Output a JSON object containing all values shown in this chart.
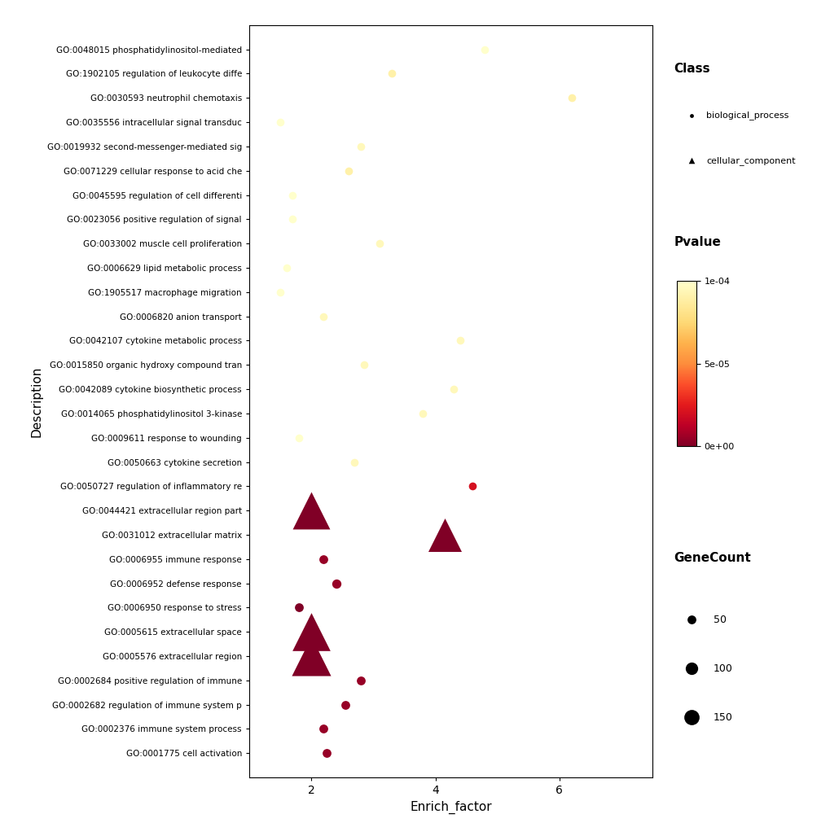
{
  "terms": [
    {
      "label": "GO:0048015 phosphatidylinositol-mediated",
      "enrich_factor": 4.8,
      "pvalue": 0.0001,
      "gene_count": 40,
      "class": "biological_process"
    },
    {
      "label": "GO:1902105 regulation of leukocyte diffe",
      "enrich_factor": 3.3,
      "pvalue": 9e-05,
      "gene_count": 40,
      "class": "biological_process"
    },
    {
      "label": "GO:0030593 neutrophil chemotaxis",
      "enrich_factor": 6.2,
      "pvalue": 9e-05,
      "gene_count": 40,
      "class": "biological_process"
    },
    {
      "label": "GO:0035556 intracellular signal transduc",
      "enrich_factor": 1.5,
      "pvalue": 0.0001,
      "gene_count": 40,
      "class": "biological_process"
    },
    {
      "label": "GO:0019932 second-messenger-mediated sig",
      "enrich_factor": 2.8,
      "pvalue": 9.5e-05,
      "gene_count": 40,
      "class": "biological_process"
    },
    {
      "label": "GO:0071229 cellular response to acid che",
      "enrich_factor": 2.6,
      "pvalue": 9e-05,
      "gene_count": 40,
      "class": "biological_process"
    },
    {
      "label": "GO:0045595 regulation of cell differenti",
      "enrich_factor": 1.7,
      "pvalue": 0.0001,
      "gene_count": 40,
      "class": "biological_process"
    },
    {
      "label": "GO:0023056 positive regulation of signal",
      "enrich_factor": 1.7,
      "pvalue": 0.0001,
      "gene_count": 40,
      "class": "biological_process"
    },
    {
      "label": "GO:0033002 muscle cell proliferation",
      "enrich_factor": 3.1,
      "pvalue": 9.5e-05,
      "gene_count": 40,
      "class": "biological_process"
    },
    {
      "label": "GO:0006629 lipid metabolic process",
      "enrich_factor": 1.6,
      "pvalue": 0.0001,
      "gene_count": 40,
      "class": "biological_process"
    },
    {
      "label": "GO:1905517 macrophage migration",
      "enrich_factor": 1.5,
      "pvalue": 0.0001,
      "gene_count": 40,
      "class": "biological_process"
    },
    {
      "label": "GO:0006820 anion transport",
      "enrich_factor": 2.2,
      "pvalue": 9.5e-05,
      "gene_count": 40,
      "class": "biological_process"
    },
    {
      "label": "GO:0042107 cytokine metabolic process",
      "enrich_factor": 4.4,
      "pvalue": 9.5e-05,
      "gene_count": 40,
      "class": "biological_process"
    },
    {
      "label": "GO:0015850 organic hydroxy compound tran",
      "enrich_factor": 2.85,
      "pvalue": 9.5e-05,
      "gene_count": 40,
      "class": "biological_process"
    },
    {
      "label": "GO:0042089 cytokine biosynthetic process",
      "enrich_factor": 4.3,
      "pvalue": 9.5e-05,
      "gene_count": 40,
      "class": "biological_process"
    },
    {
      "label": "GO:0014065 phosphatidylinositol 3-kinase",
      "enrich_factor": 3.8,
      "pvalue": 9.5e-05,
      "gene_count": 40,
      "class": "biological_process"
    },
    {
      "label": "GO:0009611 response to wounding",
      "enrich_factor": 1.8,
      "pvalue": 0.0001,
      "gene_count": 40,
      "class": "biological_process"
    },
    {
      "label": "GO:0050663 cytokine secretion",
      "enrich_factor": 2.7,
      "pvalue": 9.5e-05,
      "gene_count": 40,
      "class": "biological_process"
    },
    {
      "label": "GO:0050727 regulation of inflammatory re",
      "enrich_factor": 4.6,
      "pvalue": 2e-05,
      "gene_count": 40,
      "class": "biological_process"
    },
    {
      "label": "GO:0044421 extracellular region part",
      "enrich_factor": 2.0,
      "pvalue": 0.0,
      "gene_count": 150,
      "class": "cellular_component"
    },
    {
      "label": "GO:0031012 extracellular matrix",
      "enrich_factor": 4.15,
      "pvalue": 0.0,
      "gene_count": 120,
      "class": "cellular_component"
    },
    {
      "label": "GO:0006955 immune response",
      "enrich_factor": 2.2,
      "pvalue": 5e-06,
      "gene_count": 50,
      "class": "biological_process"
    },
    {
      "label": "GO:0006952 defense response",
      "enrich_factor": 2.4,
      "pvalue": 5e-06,
      "gene_count": 55,
      "class": "biological_process"
    },
    {
      "label": "GO:0006950 response to stress",
      "enrich_factor": 1.8,
      "pvalue": 0.0,
      "gene_count": 50,
      "class": "biological_process"
    },
    {
      "label": "GO:0005615 extracellular space",
      "enrich_factor": 2.0,
      "pvalue": 0.0,
      "gene_count": 155,
      "class": "cellular_component"
    },
    {
      "label": "GO:0005576 extracellular region",
      "enrich_factor": 2.0,
      "pvalue": 0.0,
      "gene_count": 165,
      "class": "cellular_component"
    },
    {
      "label": "GO:0002684 positive regulation of immune",
      "enrich_factor": 2.8,
      "pvalue": 5e-06,
      "gene_count": 50,
      "class": "biological_process"
    },
    {
      "label": "GO:0002682 regulation of immune system p",
      "enrich_factor": 2.55,
      "pvalue": 5e-06,
      "gene_count": 50,
      "class": "biological_process"
    },
    {
      "label": "GO:0002376 immune system process",
      "enrich_factor": 2.2,
      "pvalue": 5e-06,
      "gene_count": 50,
      "class": "biological_process"
    },
    {
      "label": "GO:0001775 cell activation",
      "enrich_factor": 2.25,
      "pvalue": 5e-06,
      "gene_count": 50,
      "class": "biological_process"
    }
  ],
  "xlabel": "Enrich_factor",
  "ylabel": "Description",
  "xlim": [
    1.0,
    7.5
  ],
  "pvalue_min": 0.0,
  "pvalue_max": 0.0001,
  "gene_count_legend": [
    50,
    100,
    150
  ],
  "background_color": "#ffffff"
}
